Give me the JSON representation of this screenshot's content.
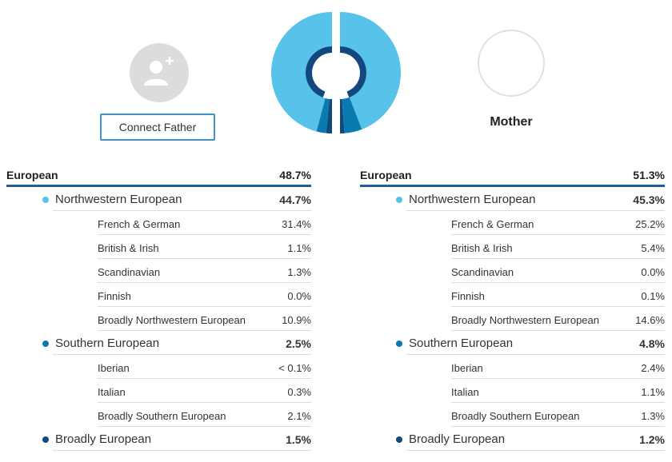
{
  "colors": {
    "light_blue": "#57c3ea",
    "dark_blue": "#1f5c99",
    "mid_blue": "#0a7bb0",
    "ring_blue": "#11497f"
  },
  "father": {
    "avatar_icon": "add-person-icon",
    "connect_label": "Connect Father"
  },
  "mother": {
    "label": "Mother"
  },
  "chart_data": {
    "type": "pie",
    "halves": [
      {
        "side": "father",
        "segments": [
          {
            "name": "Northwestern European",
            "value": 44.7
          },
          {
            "name": "Southern European",
            "value": 2.5
          },
          {
            "name": "Broadly European",
            "value": 1.5
          }
        ]
      },
      {
        "side": "mother",
        "segments": [
          {
            "name": "Northwestern European",
            "value": 45.3
          },
          {
            "name": "Southern European",
            "value": 4.8
          },
          {
            "name": "Broadly European",
            "value": 1.2
          }
        ]
      }
    ]
  },
  "left_table": {
    "header": {
      "label": "European",
      "value": "48.7%"
    },
    "groups": [
      {
        "label": "Northwestern European",
        "value": "44.7%",
        "dot": "light",
        "items": [
          {
            "label": "French & German",
            "value": "31.4%"
          },
          {
            "label": "British & Irish",
            "value": "1.1%"
          },
          {
            "label": "Scandinavian",
            "value": "1.3%"
          },
          {
            "label": "Finnish",
            "value": "0.0%"
          },
          {
            "label": "Broadly Northwestern European",
            "value": "10.9%"
          }
        ]
      },
      {
        "label": "Southern European",
        "value": "2.5%",
        "dot": "mid",
        "items": [
          {
            "label": "Iberian",
            "value": "< 0.1%"
          },
          {
            "label": "Italian",
            "value": "0.3%"
          },
          {
            "label": "Broadly Southern European",
            "value": "2.1%"
          }
        ]
      },
      {
        "label": "Broadly European",
        "value": "1.5%",
        "dot": "dark",
        "items": []
      }
    ]
  },
  "right_table": {
    "header": {
      "label": "European",
      "value": "51.3%"
    },
    "groups": [
      {
        "label": "Northwestern European",
        "value": "45.3%",
        "dot": "light",
        "items": [
          {
            "label": "French & German",
            "value": "25.2%"
          },
          {
            "label": "British & Irish",
            "value": "5.4%"
          },
          {
            "label": "Scandinavian",
            "value": "0.0%"
          },
          {
            "label": "Finnish",
            "value": "0.1%"
          },
          {
            "label": "Broadly Northwestern European",
            "value": "14.6%"
          }
        ]
      },
      {
        "label": "Southern European",
        "value": "4.8%",
        "dot": "mid",
        "items": [
          {
            "label": "Iberian",
            "value": "2.4%"
          },
          {
            "label": "Italian",
            "value": "1.1%"
          },
          {
            "label": "Broadly Southern European",
            "value": "1.3%"
          }
        ]
      },
      {
        "label": "Broadly European",
        "value": "1.2%",
        "dot": "dark",
        "items": []
      }
    ]
  }
}
